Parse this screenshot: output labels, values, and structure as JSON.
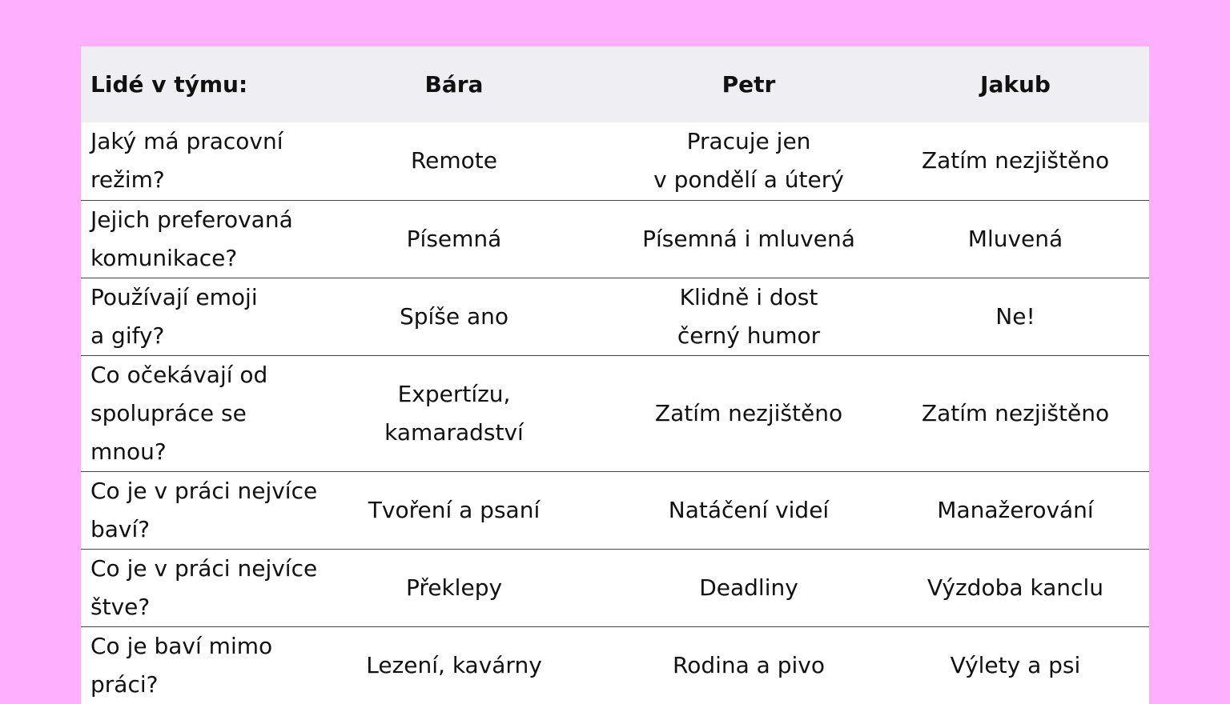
{
  "colors": {
    "background": "#FEB0FE",
    "header": "#EFEFF3",
    "row_border": "#444444"
  },
  "headers": [
    "Lidé v týmu:",
    "Bára",
    "Petr",
    "Jakub"
  ],
  "rows": [
    {
      "q": "Jaký má pracovní režim?",
      "c": [
        "Remote",
        "Pracuje jen v pondělí a úterý",
        "Zatím nezjištěno"
      ]
    },
    {
      "q": "Jejich preferovaná komunikace?",
      "c": [
        "Písemná",
        "Písemná i mluvená",
        "Mluvená"
      ]
    },
    {
      "q": "Používají emoji a gify?",
      "c": [
        "Spíše ano",
        "Klidně i dost černý humor",
        "Ne!"
      ]
    },
    {
      "q": "Co očekávají od spolupráce se mnou?",
      "c": [
        "Expertízu, kamaradství",
        "Zatím nezjištěno",
        "Zatím nezjištěno"
      ]
    },
    {
      "q": "Co je v práci nejvíce baví?",
      "c": [
        "Tvoření a psaní",
        "Natáčení videí",
        "Manažerování"
      ]
    },
    {
      "q": "Co je v práci nejvíce štve?",
      "c": [
        "Překlepy",
        "Deadliny",
        "Výzdoba kanclu"
      ]
    },
    {
      "q": "Co je baví mimo práci?",
      "c": [
        "Lezení, kavárny",
        "Rodina a pivo",
        "Výlety a psi"
      ]
    }
  ]
}
